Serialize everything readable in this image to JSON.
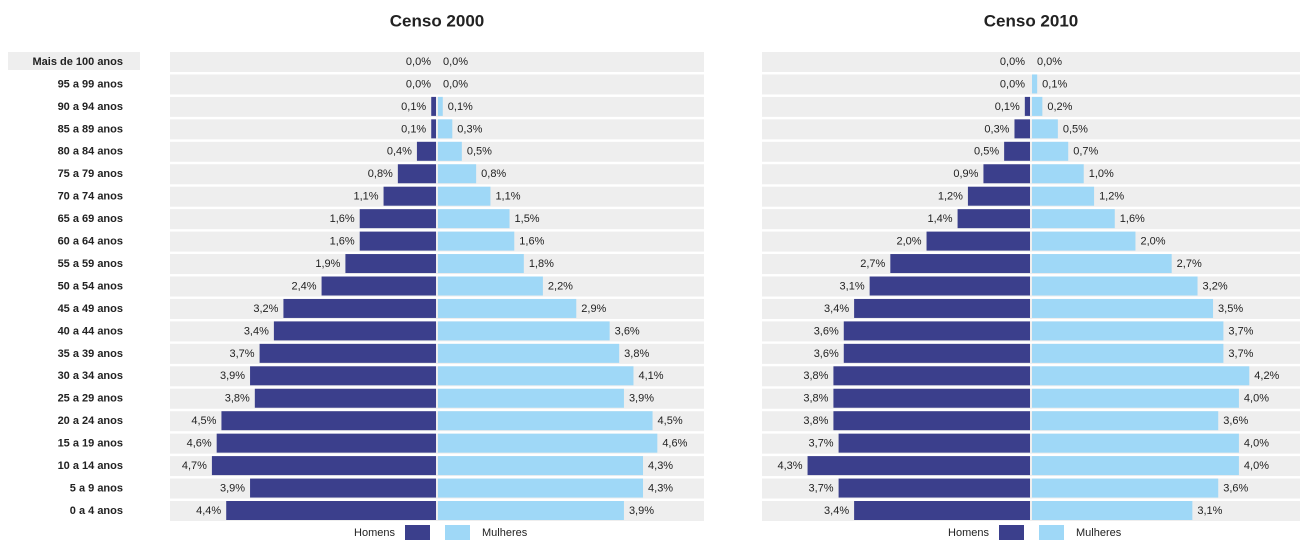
{
  "chart_data": [
    {
      "type": "pyramid",
      "title": "Censo 2000",
      "categories": [
        "Mais de 100 anos",
        "95 a 99 anos",
        "90 a 94 anos",
        "85 a 89 anos",
        "80 a 84 anos",
        "75 a 79 anos",
        "70 a 74 anos",
        "65 a 69 anos",
        "60 a 64 anos",
        "55 a 59 anos",
        "50 a 54 anos",
        "45 a 49 anos",
        "40 a 44 anos",
        "35 a 39 anos",
        "30 a 34 anos",
        "25 a 29 anos",
        "20 a 24 anos",
        "15 a 19 anos",
        "10 a 14 anos",
        "5 a 9 anos",
        "0 a 4 anos"
      ],
      "xlim": [
        0,
        5.6
      ],
      "series": [
        {
          "name": "Homens",
          "color": "#3b3f8c",
          "values": [
            0.0,
            0.0,
            0.1,
            0.1,
            0.4,
            0.8,
            1.1,
            1.6,
            1.6,
            1.9,
            2.4,
            3.2,
            3.4,
            3.7,
            3.9,
            3.8,
            4.5,
            4.6,
            4.7,
            3.9,
            4.4
          ],
          "value_labels": [
            "0,0%",
            "0,0%",
            "0,1%",
            "0,1%",
            "0,4%",
            "0,8%",
            "1,1%",
            "1,6%",
            "1,6%",
            "1,9%",
            "2,4%",
            "3,2%",
            "3,4%",
            "3,7%",
            "3,9%",
            "3,8%",
            "4,5%",
            "4,6%",
            "4,7%",
            "3,9%",
            "4,4%"
          ]
        },
        {
          "name": "Mulheres",
          "color": "#9fd8f7",
          "values": [
            0.0,
            0.0,
            0.1,
            0.3,
            0.5,
            0.8,
            1.1,
            1.5,
            1.6,
            1.8,
            2.2,
            2.9,
            3.6,
            3.8,
            4.1,
            3.9,
            4.5,
            4.6,
            4.3,
            4.3,
            3.9
          ],
          "value_labels": [
            "0,0%",
            "0,0%",
            "0,1%",
            "0,3%",
            "0,5%",
            "0,8%",
            "1,1%",
            "1,5%",
            "1,6%",
            "1,8%",
            "2,2%",
            "2,9%",
            "3,6%",
            "3,8%",
            "4,1%",
            "3,9%",
            "4,5%",
            "4,6%",
            "4,3%",
            "4,3%",
            "3,9%"
          ]
        }
      ]
    },
    {
      "type": "pyramid",
      "title": "Censo 2010",
      "xlim": [
        0,
        5.2
      ],
      "series": [
        {
          "name": "Homens",
          "color": "#3b3f8c",
          "values": [
            0.0,
            0.0,
            0.1,
            0.3,
            0.5,
            0.9,
            1.2,
            1.4,
            2.0,
            2.7,
            3.1,
            3.4,
            3.6,
            3.6,
            3.8,
            3.8,
            3.8,
            3.7,
            4.3,
            3.7,
            3.4
          ],
          "value_labels": [
            "0,0%",
            "0,0%",
            "0,1%",
            "0,3%",
            "0,5%",
            "0,9%",
            "1,2%",
            "1,4%",
            "2,0%",
            "2,7%",
            "3,1%",
            "3,4%",
            "3,6%",
            "3,6%",
            "3,8%",
            "3,8%",
            "3,8%",
            "3,7%",
            "4,3%",
            "3,7%",
            "3,4%"
          ]
        },
        {
          "name": "Mulheres",
          "color": "#9fd8f7",
          "values": [
            0.0,
            0.1,
            0.2,
            0.5,
            0.7,
            1.0,
            1.2,
            1.6,
            2.0,
            2.7,
            3.2,
            3.5,
            3.7,
            3.7,
            4.2,
            4.0,
            3.6,
            4.0,
            4.0,
            3.6,
            3.1
          ],
          "value_labels": [
            "0,0%",
            "0,1%",
            "0,2%",
            "0,5%",
            "0,7%",
            "1,0%",
            "1,2%",
            "1,6%",
            "2,0%",
            "2,7%",
            "3,2%",
            "3,5%",
            "3,7%",
            "3,7%",
            "4,2%",
            "4,0%",
            "3,6%",
            "4,0%",
            "4,0%",
            "3,6%",
            "3,1%"
          ]
        }
      ]
    }
  ]
}
